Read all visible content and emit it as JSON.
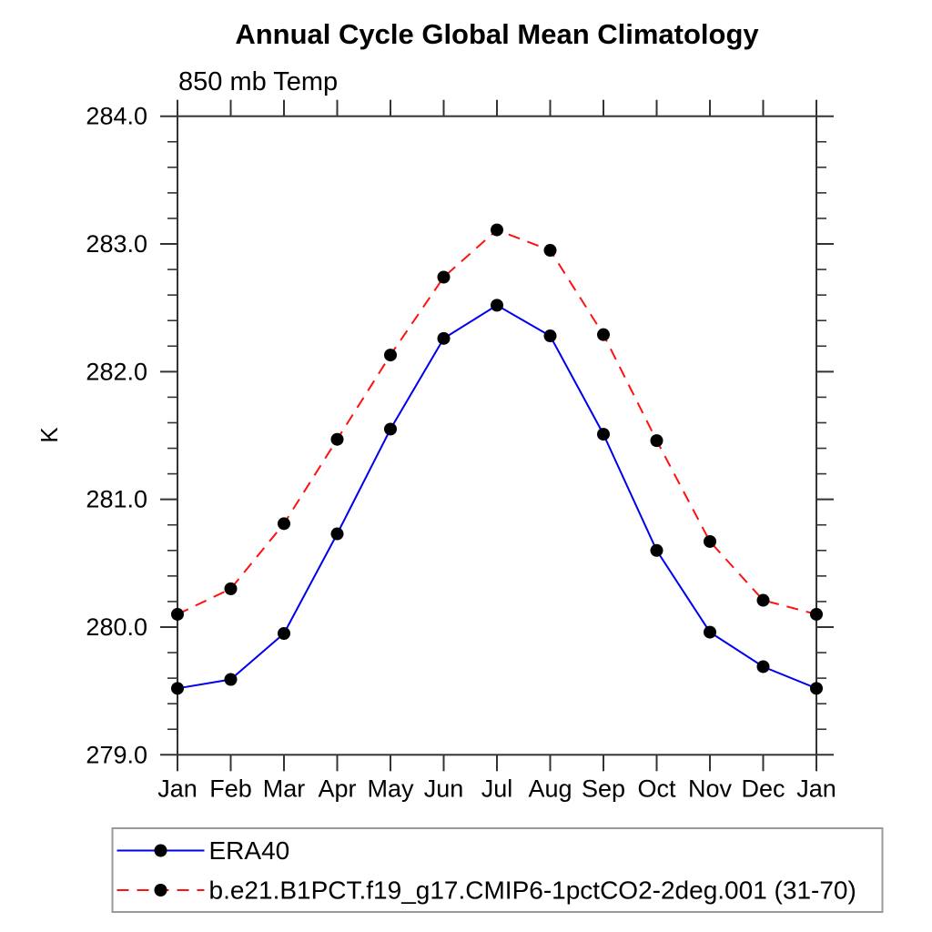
{
  "page": {
    "background_color": "#ffffff"
  },
  "chart_data": {
    "type": "line",
    "title": "Annual Cycle Global Mean Climatology",
    "subtitle": "850 mb Temp",
    "ylabel": "K",
    "xlabel": "",
    "categories": [
      "Jan",
      "Feb",
      "Mar",
      "Apr",
      "May",
      "Jun",
      "Jul",
      "Aug",
      "Sep",
      "Oct",
      "Nov",
      "Dec",
      "Jan"
    ],
    "ylim": [
      279.0,
      284.0
    ],
    "ytick_step": 1.0,
    "yminor_step": 0.2,
    "ytick_decimals": 1,
    "grid": false,
    "legend_position": "bottom-left",
    "axis_color": "#333333",
    "text_color": "#000000",
    "marker_color": "#000000",
    "legend_border_color": "#999999",
    "series": [
      {
        "name": "ERA40",
        "color": "#0000ee",
        "line_style": "solid",
        "marker": "circle",
        "values": [
          279.52,
          279.59,
          279.95,
          280.73,
          281.55,
          282.26,
          282.52,
          282.28,
          281.51,
          280.6,
          279.96,
          279.69,
          279.52
        ]
      },
      {
        "name": "b.e21.B1PCT.f19_g17.CMIP6-1pctCO2-2deg.001 (31-70)",
        "color": "#ff1111",
        "line_style": "dashed",
        "marker": "circle",
        "values": [
          280.1,
          280.3,
          280.81,
          281.47,
          282.13,
          282.74,
          283.11,
          282.95,
          282.29,
          281.46,
          280.67,
          280.21,
          280.1
        ]
      }
    ]
  }
}
